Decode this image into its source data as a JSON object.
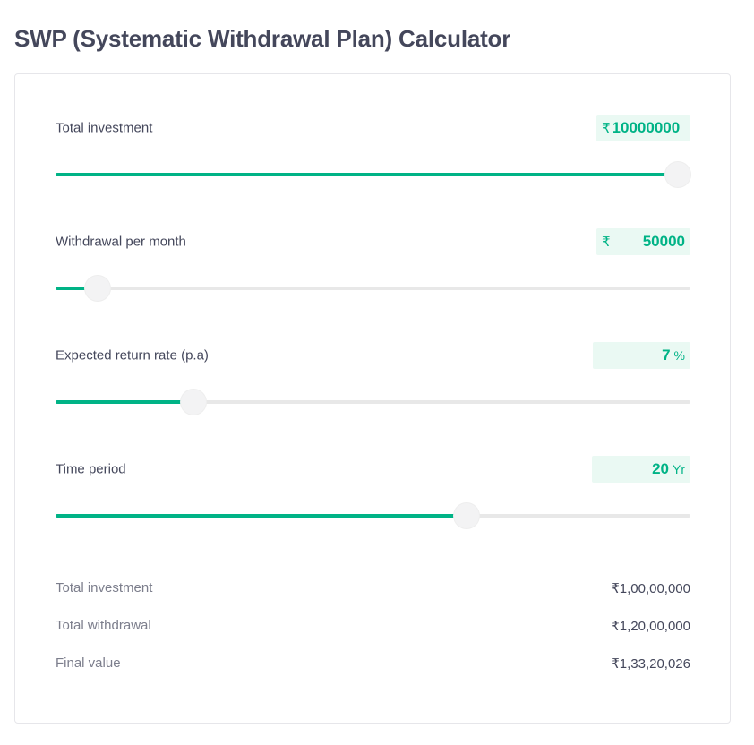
{
  "title": "SWP (Systematic Withdrawal Plan) Calculator",
  "inputs": {
    "total_investment": {
      "label": "Total investment",
      "prefix": "₹",
      "value": "10000000",
      "slider_fraction": 0.98
    },
    "withdrawal": {
      "label": "Withdrawal per month",
      "prefix": "₹",
      "value": "50000",
      "slider_fraction": 0.066
    },
    "return_rate": {
      "label": "Expected return rate (p.a)",
      "value": "7",
      "suffix": "%",
      "slider_fraction": 0.217
    },
    "time_period": {
      "label": "Time period",
      "value": "20",
      "suffix": "Yr",
      "slider_fraction": 0.647
    }
  },
  "results": [
    {
      "label": "Total investment",
      "value": "₹1,00,00,000"
    },
    {
      "label": "Total withdrawal",
      "value": "₹1,20,00,000"
    },
    {
      "label": "Final value",
      "value": "₹1,33,20,026"
    }
  ],
  "colors": {
    "accent": "#00b386",
    "value_bg": "#eaf9f3",
    "track": "#e8e8e8",
    "text": "#44475b",
    "muted": "#7c7e8c"
  }
}
